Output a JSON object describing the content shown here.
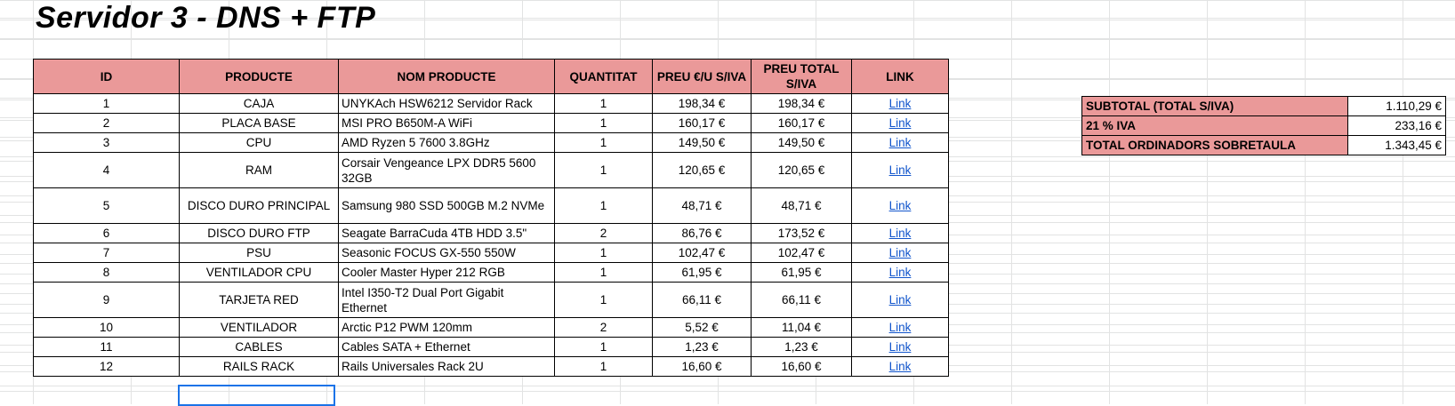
{
  "sheet": {
    "title": "Servidor 3 - DNS + FTP"
  },
  "table": {
    "headers": {
      "id": "ID",
      "producte": "PRODUCTE",
      "nom": "NOM PRODUCTE",
      "quantitat": "QUANTITAT",
      "preu_u": "PREU €/U S/IVA",
      "preu_total": "PREU TOTAL S/IVA",
      "link": "LINK"
    },
    "rows": [
      {
        "id": "1",
        "producte": "CAJA",
        "nom": "UNYKAch HSW6212 Servidor Rack",
        "quantitat": "1",
        "preu_u": "198,34 €",
        "preu_total": "198,34 €",
        "link": "Link"
      },
      {
        "id": "2",
        "producte": "PLACA BASE",
        "nom": "MSI PRO B650M-A WiFi",
        "quantitat": "1",
        "preu_u": "160,17 €",
        "preu_total": "160,17 €",
        "link": "Link"
      },
      {
        "id": "3",
        "producte": "CPU",
        "nom": "AMD Ryzen 5 7600 3.8GHz",
        "quantitat": "1",
        "preu_u": "149,50 €",
        "preu_total": "149,50 €",
        "link": "Link"
      },
      {
        "id": "4",
        "producte": "RAM",
        "nom": "Corsair Vengeance LPX DDR5 5600 32GB",
        "quantitat": "1",
        "preu_u": "120,65 €",
        "preu_total": "120,65 €",
        "link": "Link"
      },
      {
        "id": "5",
        "producte": "DISCO DURO PRINCIPAL",
        "nom": "Samsung 980 SSD 500GB M.2 NVMe",
        "quantitat": "1",
        "preu_u": "48,71 €",
        "preu_total": "48,71 €",
        "link": "Link"
      },
      {
        "id": "6",
        "producte": "DISCO DURO FTP",
        "nom": "Seagate BarraCuda 4TB HDD 3.5\"",
        "quantitat": "2",
        "preu_u": "86,76 €",
        "preu_total": "173,52 €",
        "link": "Link"
      },
      {
        "id": "7",
        "producte": "PSU",
        "nom": "Seasonic FOCUS GX-550 550W",
        "quantitat": "1",
        "preu_u": "102,47 €",
        "preu_total": "102,47 €",
        "link": "Link"
      },
      {
        "id": "8",
        "producte": "VENTILADOR CPU",
        "nom": "Cooler Master Hyper 212 RGB",
        "quantitat": "1",
        "preu_u": "61,95 €",
        "preu_total": "61,95 €",
        "link": "Link"
      },
      {
        "id": "9",
        "producte": "TARJETA RED",
        "nom": "Intel I350-T2 Dual Port Gigabit Ethernet",
        "quantitat": "1",
        "preu_u": "66,11 €",
        "preu_total": "66,11 €",
        "link": "Link"
      },
      {
        "id": "10",
        "producte": "VENTILADOR",
        "nom": "Arctic P12 PWM 120mm",
        "quantitat": "2",
        "preu_u": "5,52 €",
        "preu_total": "11,04 €",
        "link": "Link"
      },
      {
        "id": "11",
        "producte": "CABLES",
        "nom": "Cables SATA + Ethernet",
        "quantitat": "1",
        "preu_u": "1,23 €",
        "preu_total": "1,23 €",
        "link": "Link"
      },
      {
        "id": "12",
        "producte": "RAILS RACK",
        "nom": "Rails Universales Rack 2U",
        "quantitat": "1",
        "preu_u": "16,60 €",
        "preu_total": "16,60 €",
        "link": "Link"
      }
    ]
  },
  "totals": [
    {
      "label": "SUBTOTAL (TOTAL S/IVA)",
      "value": "1.110,29 €"
    },
    {
      "label": "21 % IVA",
      "value": "233,16 €"
    },
    {
      "label": "TOTAL ORDINADORS SOBRETAULA",
      "value": "1.343,45 €"
    }
  ],
  "colors": {
    "header_fill": "#ea9999",
    "link": "#1155cc",
    "selection": "#1a73e8",
    "gridline": "#e2e3e3"
  }
}
